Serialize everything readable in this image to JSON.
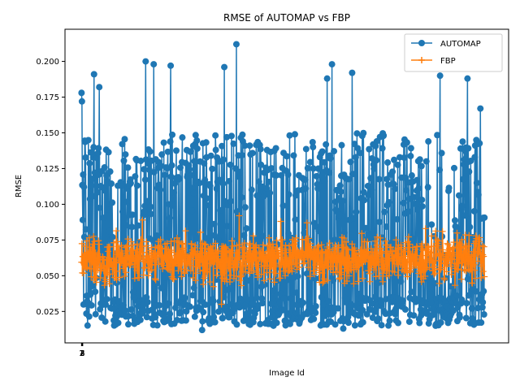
{
  "chart_data": {
    "type": "line",
    "title": "RMSE of AUTOMAP vs FBP",
    "xlabel": "Image Id",
    "ylabel": "RMSE",
    "xlim": [
      -40,
      1060
    ],
    "ylim": [
      0.003,
      0.2225
    ],
    "x_ticks": [
      "1",
      "2",
      "3",
      "4"
    ],
    "y_ticks": [
      "0.025",
      "0.050",
      "0.075",
      "0.100",
      "0.125",
      "0.150",
      "0.175",
      "0.200"
    ],
    "grid": false,
    "legend_position": "top-right",
    "n_points": 1000,
    "series": [
      {
        "name": "AUTOMAP",
        "color": "#1f77b4",
        "marker": "circle",
        "value_range": [
          0.012,
          0.212
        ],
        "typical_band": [
          0.015,
          0.15
        ],
        "peak_values": [
          {
            "x": 1,
            "y": 0.178
          },
          {
            "x": 2,
            "y": 0.172
          },
          {
            "x": 32,
            "y": 0.191
          },
          {
            "x": 45,
            "y": 0.182
          },
          {
            "x": 160,
            "y": 0.2
          },
          {
            "x": 180,
            "y": 0.198
          },
          {
            "x": 222,
            "y": 0.197
          },
          {
            "x": 355,
            "y": 0.196
          },
          {
            "x": 385,
            "y": 0.212
          },
          {
            "x": 610,
            "y": 0.188
          },
          {
            "x": 622,
            "y": 0.198
          },
          {
            "x": 672,
            "y": 0.192
          },
          {
            "x": 890,
            "y": 0.19
          },
          {
            "x": 958,
            "y": 0.188
          },
          {
            "x": 990,
            "y": 0.167
          }
        ],
        "trough_values": [
          {
            "x": 300,
            "y": 0.012
          },
          {
            "x": 650,
            "y": 0.013
          }
        ]
      },
      {
        "name": "FBP",
        "color": "#ff7f0e",
        "marker": "plus",
        "value_range": [
          0.03,
          0.093
        ],
        "typical_band": [
          0.038,
          0.085
        ],
        "peak_values": [
          {
            "x": 152,
            "y": 0.089
          },
          {
            "x": 392,
            "y": 0.092
          },
          {
            "x": 495,
            "y": 0.088
          },
          {
            "x": 560,
            "y": 0.087
          }
        ],
        "trough_values": [
          {
            "x": 348,
            "y": 0.03
          }
        ]
      }
    ]
  }
}
